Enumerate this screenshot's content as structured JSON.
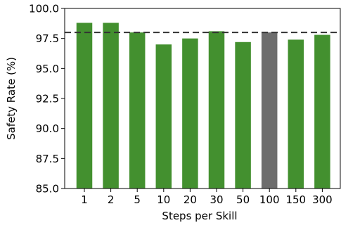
{
  "chart_data": {
    "type": "bar",
    "title": "",
    "xlabel": "Steps per Skill",
    "ylabel": "Safety Rate (%)",
    "categories": [
      "1",
      "2",
      "5",
      "10",
      "20",
      "30",
      "50",
      "100",
      "150",
      "300"
    ],
    "values": [
      98.8,
      98.8,
      98.0,
      97.0,
      97.5,
      98.1,
      97.2,
      98.0,
      97.4,
      97.8
    ],
    "highlight_category": "100",
    "reference_line": 98.0,
    "ylim": [
      85.0,
      100.0
    ],
    "yticks": [
      "85.0",
      "87.5",
      "90.0",
      "92.5",
      "95.0",
      "97.5",
      "100.0"
    ],
    "grid": false,
    "legend": "none",
    "colors": {
      "bar": "#43902f",
      "highlight": "#6d6d6d",
      "reference_line": "#333333",
      "axis": "#000000"
    }
  }
}
